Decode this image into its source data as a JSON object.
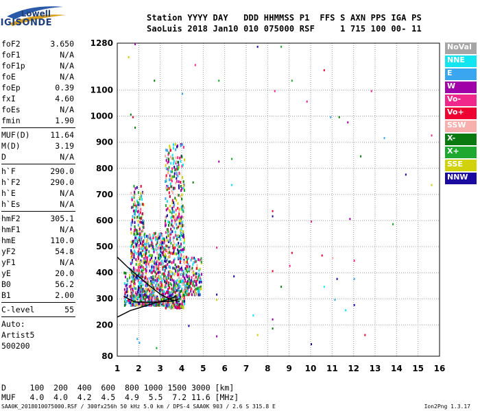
{
  "logo": {
    "line1": "Lowell",
    "line2": "DIGISONDE"
  },
  "header": {
    "line1": "Station YYYY DAY   DDD HHMMSS P1  FFS S AXN PPS IGA PS",
    "line2": "SaoLuis 2018 Jan10 010 075000 RSF     1 715 100 00- 11"
  },
  "sidebar": {
    "group1": [
      {
        "k": "foF2",
        "v": "3.650"
      },
      {
        "k": "foF1",
        "v": "N/A"
      },
      {
        "k": "foF1p",
        "v": "N/A"
      },
      {
        "k": "foE",
        "v": "N/A"
      },
      {
        "k": "foEp",
        "v": "0.39"
      },
      {
        "k": "fxI",
        "v": "4.60"
      },
      {
        "k": "foEs",
        "v": "N/A"
      },
      {
        "k": "fmin",
        "v": "1.90"
      }
    ],
    "group2": [
      {
        "k": "MUF(D)",
        "v": "11.64"
      },
      {
        "k": "M(D)",
        "v": "3.19"
      },
      {
        "k": "D",
        "v": "N/A"
      }
    ],
    "group3": [
      {
        "k": "h`F",
        "v": "290.0"
      },
      {
        "k": "h`F2",
        "v": "290.0"
      },
      {
        "k": "h`E",
        "v": "N/A"
      },
      {
        "k": "h`Es",
        "v": "N/A"
      }
    ],
    "group4": [
      {
        "k": "hmF2",
        "v": "305.1"
      },
      {
        "k": "hmF1",
        "v": "N/A"
      },
      {
        "k": "hmE",
        "v": "110.0"
      },
      {
        "k": "yF2",
        "v": "54.8"
      },
      {
        "k": "yF1",
        "v": "N/A"
      },
      {
        "k": "yE",
        "v": "20.0"
      },
      {
        "k": "B0",
        "v": "56.2"
      },
      {
        "k": "B1",
        "v": "2.00"
      }
    ],
    "group5": [
      {
        "k": "C-level",
        "v": "55"
      }
    ],
    "auto_label": "Auto:",
    "artist": "Artist5",
    "code": "500200"
  },
  "legend": [
    {
      "label": "NoVal",
      "color": "#a6a6a6"
    },
    {
      "label": "NNE",
      "color": "#12e4f0"
    },
    {
      "label": "E",
      "color": "#3aa6f0"
    },
    {
      "label": "W",
      "color": "#a000a8"
    },
    {
      "label": "Vo-",
      "color": "#f0288c"
    },
    {
      "label": "Vo+",
      "color": "#ee0030"
    },
    {
      "label": "SSW",
      "color": "#f8b0ae"
    },
    {
      "label": "X-",
      "color": "#0a7a10"
    },
    {
      "label": "X+",
      "color": "#1ea830"
    },
    {
      "label": "SSE",
      "color": "#d2d20a"
    },
    {
      "label": "NNW",
      "color": "#1a0aa0"
    }
  ],
  "bottom": {
    "dist_line": "D     100  200  400  600  800 1000 1500 3000 [km]",
    "muf_line": "MUF   4.0  4.0  4.2  4.5  4.9  5.5  7.2 11.6 [MHz]"
  },
  "footer": {
    "text": "SAA0K_2018010075000.RSF / 300fx256h 50 kHz 5.0 km / DPS-4 SAA0K 903 / 2.6 S 315.8 E",
    "version": "Ion2Png 1.3.17"
  },
  "chart_data": {
    "type": "scatter",
    "x_ticks": [
      1,
      2,
      3,
      4,
      5,
      6,
      7,
      8,
      9,
      10,
      11,
      12,
      13,
      14,
      15,
      16
    ],
    "y_ticks": [
      80,
      200,
      300,
      400,
      500,
      600,
      700,
      800,
      900,
      1000,
      1100,
      1280
    ],
    "xlim": [
      1,
      16
    ],
    "ylim": [
      80,
      1280
    ],
    "grid": true,
    "legend_position": "right",
    "traces": [
      {
        "name": "trace",
        "points": [
          [
            1.0,
            230
          ],
          [
            1.6,
            255
          ],
          [
            2.2,
            270
          ],
          [
            2.8,
            285
          ],
          [
            3.4,
            298
          ],
          [
            3.75,
            310
          ]
        ]
      },
      {
        "name": "trace",
        "points": [
          [
            1.0,
            460
          ],
          [
            1.5,
            420
          ],
          [
            2.0,
            385
          ],
          [
            2.5,
            350
          ],
          [
            3.0,
            318
          ],
          [
            3.5,
            296
          ],
          [
            3.9,
            290
          ]
        ]
      },
      {
        "name": "trace",
        "points": [
          [
            1.3,
            310
          ],
          [
            1.8,
            288
          ],
          [
            2.4,
            287
          ],
          [
            3.0,
            288
          ],
          [
            3.6,
            292
          ],
          [
            3.9,
            300
          ]
        ]
      }
    ],
    "sparse_points": [
      [
        1.5,
        1230
      ],
      [
        1.8,
        1280
      ],
      [
        2.7,
        1140
      ],
      [
        4.0,
        1090
      ],
      [
        4.6,
        1200
      ],
      [
        5.7,
        1140
      ],
      [
        7.5,
        1270
      ],
      [
        8.3,
        1100
      ],
      [
        8.6,
        1270
      ],
      [
        9.1,
        1140
      ],
      [
        9.8,
        1060
      ],
      [
        10.6,
        1180
      ],
      [
        10.9,
        1000
      ],
      [
        11.3,
        1000
      ],
      [
        11.7,
        980
      ],
      [
        12.8,
        1100
      ],
      [
        13.4,
        920
      ],
      [
        15.6,
        930
      ],
      [
        12.3,
        850
      ],
      [
        14.4,
        780
      ],
      [
        15.6,
        740
      ],
      [
        5.7,
        830
      ],
      [
        6.3,
        840
      ],
      [
        4.5,
        750
      ],
      [
        6.3,
        740
      ],
      [
        8.2,
        640
      ],
      [
        8.2,
        620
      ],
      [
        10.0,
        600
      ],
      [
        11.8,
        610
      ],
      [
        13.8,
        590
      ],
      [
        5.6,
        500
      ],
      [
        9.1,
        480
      ],
      [
        10.5,
        470
      ],
      [
        11.0,
        460
      ],
      [
        12.0,
        450
      ],
      [
        9.0,
        430
      ],
      [
        6.4,
        390
      ],
      [
        8.2,
        410
      ],
      [
        11.2,
        380
      ],
      [
        10.6,
        350
      ],
      [
        8.6,
        350
      ],
      [
        12.0,
        380
      ],
      [
        5.6,
        320
      ],
      [
        5.6,
        300
      ],
      [
        7.3,
        240
      ],
      [
        8.2,
        225
      ],
      [
        8.2,
        190
      ],
      [
        11.1,
        300
      ],
      [
        11.6,
        260
      ],
      [
        12.0,
        280
      ],
      [
        4.3,
        200
      ],
      [
        5.6,
        160
      ],
      [
        7.5,
        165
      ],
      [
        10.0,
        130
      ],
      [
        12.5,
        165
      ],
      [
        1.9,
        150
      ],
      [
        2.0,
        135
      ],
      [
        2.8,
        115
      ],
      [
        1.7,
        1000
      ],
      [
        1.6,
        1010
      ],
      [
        1.8,
        960
      ]
    ]
  }
}
